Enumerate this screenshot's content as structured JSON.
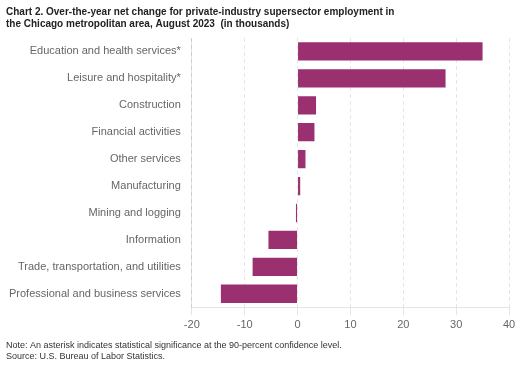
{
  "chart_data": {
    "type": "bar",
    "orientation": "horizontal",
    "title": [
      "Chart 2. Over-the-year net change for private-industry supersector employment in",
      "the Chicago metropolitan area, August 2023  (in thousands)"
    ],
    "annotations": [
      "Note: An asterisk indicates statistical significance at the 90-percent confidence level.",
      "Source: U.S. Bureau of Labor Statistics."
    ],
    "categories": [
      "Professional and business services",
      "Trade, transportation, and utilities",
      "Information",
      "Mining and logging",
      "Manufacturing",
      "Other services",
      "Financial activities",
      "Construction",
      "Leisure and hospitality*",
      "Education and health services*"
    ],
    "values": [
      -14.5,
      -8.5,
      -5.5,
      -0.3,
      0.5,
      1.5,
      3.2,
      3.5,
      28.0,
      35.0
    ],
    "color": "#9b3070",
    "xlim": [
      -20,
      40
    ],
    "xticks": [
      -20,
      -10,
      0,
      10,
      20,
      30,
      40
    ],
    "grid": true
  }
}
